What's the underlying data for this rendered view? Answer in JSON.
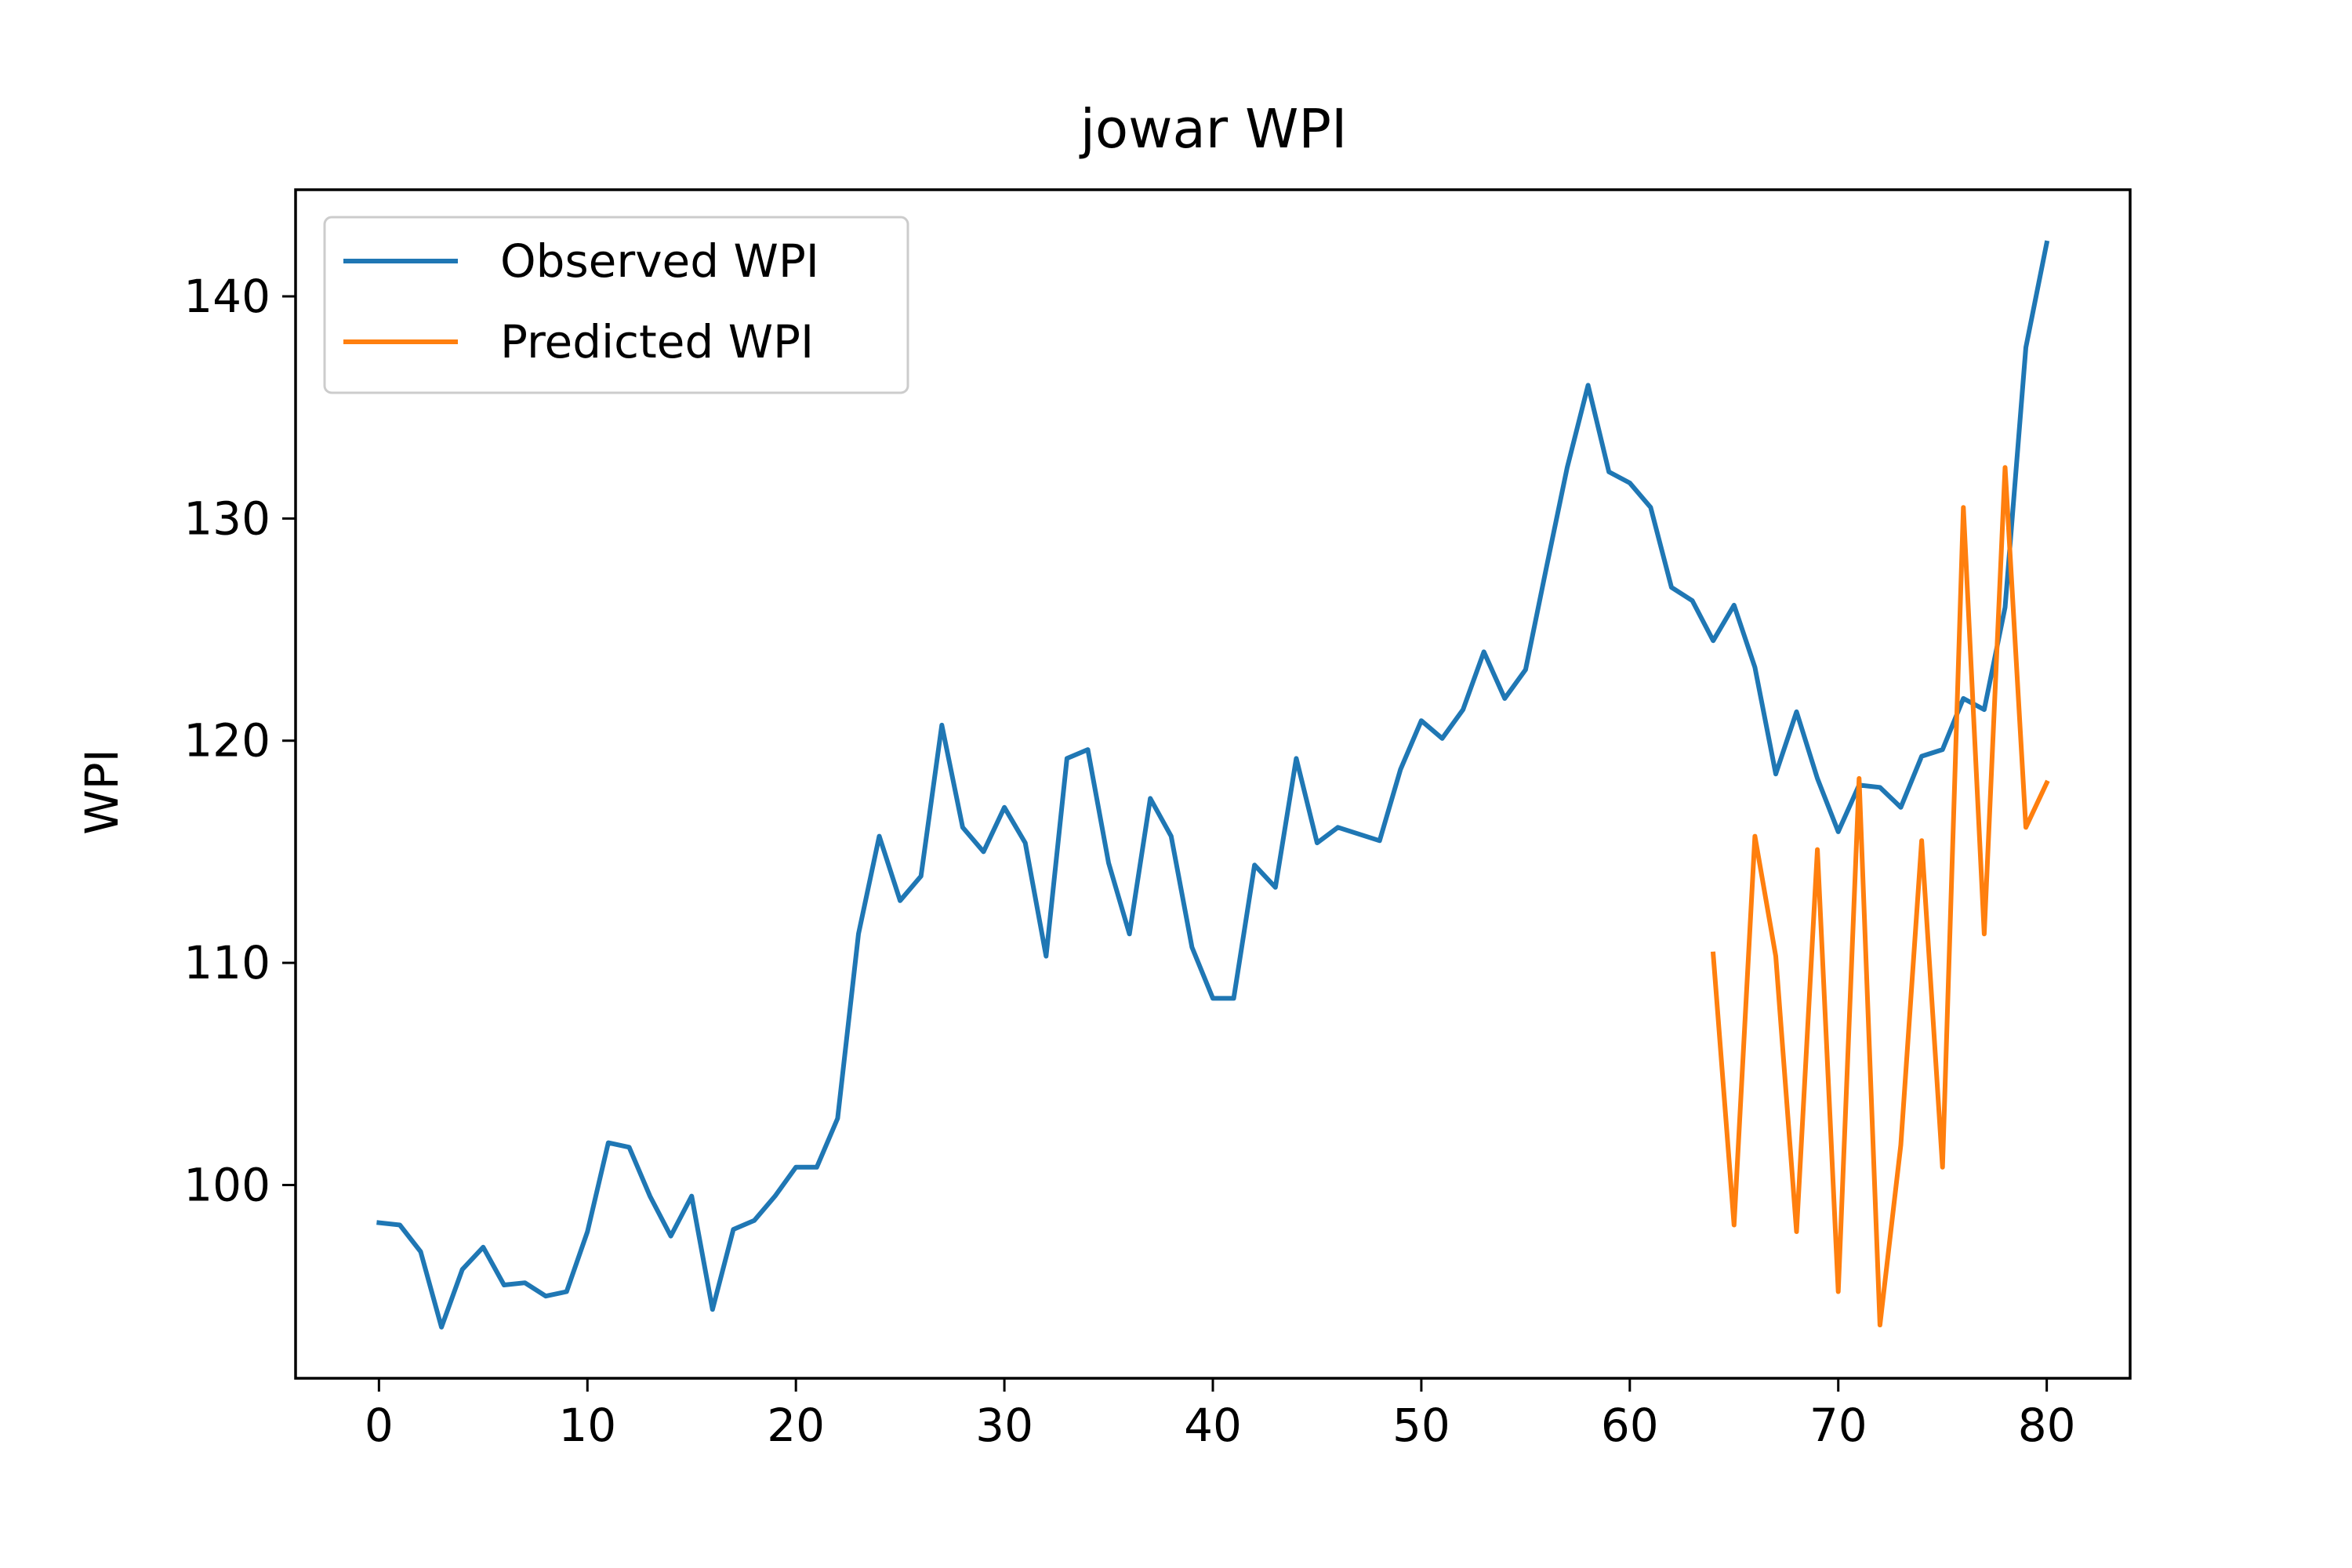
{
  "chart_data": {
    "type": "line",
    "title": "jowar WPI",
    "xlabel": "",
    "ylabel": "WPI",
    "xlim": [
      -4,
      84
    ],
    "ylim": [
      91.3,
      144.8
    ],
    "xticks": [
      0,
      10,
      20,
      30,
      40,
      50,
      60,
      70,
      80
    ],
    "yticks": [
      100,
      110,
      120,
      130,
      140
    ],
    "grid": false,
    "legend_position": "upper left",
    "series": [
      {
        "name": "Observed WPI",
        "color": "#1f77b4",
        "x": [
          0,
          1,
          2,
          3,
          4,
          5,
          6,
          7,
          8,
          9,
          10,
          11,
          12,
          13,
          14,
          15,
          16,
          17,
          18,
          19,
          20,
          21,
          22,
          23,
          24,
          25,
          26,
          27,
          28,
          29,
          30,
          31,
          32,
          33,
          34,
          35,
          36,
          37,
          38,
          39,
          40,
          41,
          42,
          43,
          44,
          45,
          46,
          47,
          48,
          49,
          50,
          51,
          52,
          53,
          54,
          55,
          56,
          57,
          58,
          59,
          60,
          61,
          62,
          63,
          64,
          65,
          66,
          67,
          68,
          69,
          70,
          71,
          72,
          73,
          74,
          75,
          76,
          77,
          78,
          79,
          80
        ],
        "y": [
          98.3,
          98.2,
          97.0,
          93.6,
          96.2,
          97.2,
          95.5,
          95.6,
          95.0,
          95.2,
          97.9,
          101.9,
          101.7,
          99.5,
          97.7,
          99.5,
          94.4,
          98.0,
          98.4,
          99.5,
          100.8,
          100.8,
          103.0,
          111.3,
          115.7,
          112.8,
          113.9,
          120.7,
          116.1,
          115.0,
          117.0,
          115.4,
          110.3,
          119.2,
          119.6,
          114.5,
          111.3,
          117.4,
          115.7,
          110.7,
          108.4,
          108.4,
          114.4,
          113.4,
          119.2,
          115.4,
          116.1,
          115.8,
          115.5,
          118.7,
          120.9,
          120.1,
          121.4,
          124.0,
          121.9,
          123.2,
          127.8,
          132.3,
          136.0,
          132.1,
          131.6,
          130.5,
          126.9,
          126.3,
          124.5,
          126.1,
          123.3,
          118.5,
          121.3,
          118.3,
          115.9,
          118.0,
          117.9,
          117.0,
          119.3,
          119.6,
          121.9,
          121.4,
          126.0,
          137.7,
          142.4
        ]
      },
      {
        "name": "Predicted WPI",
        "color": "#ff7f0e",
        "x": [
          64,
          65,
          66,
          67,
          68,
          69,
          70,
          71,
          72,
          73,
          74,
          75,
          76,
          77,
          78,
          79,
          80
        ],
        "y": [
          110.4,
          98.2,
          115.7,
          110.3,
          97.9,
          115.1,
          95.2,
          118.3,
          93.7,
          101.8,
          115.5,
          100.8,
          130.5,
          111.3,
          132.3,
          116.1,
          118.1
        ]
      }
    ]
  }
}
